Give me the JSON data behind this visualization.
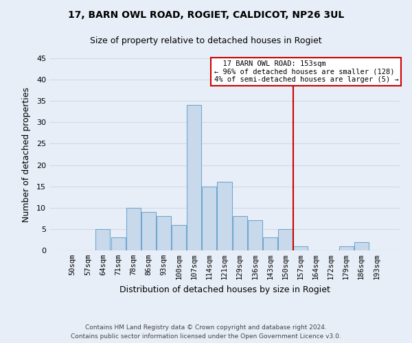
{
  "title": "17, BARN OWL ROAD, ROGIET, CALDICOT, NP26 3UL",
  "subtitle": "Size of property relative to detached houses in Rogiet",
  "xlabel": "Distribution of detached houses by size in Rogiet",
  "ylabel": "Number of detached properties",
  "footer_line1": "Contains HM Land Registry data © Crown copyright and database right 2024.",
  "footer_line2": "Contains public sector information licensed under the Open Government Licence v3.0.",
  "bin_labels": [
    "50sqm",
    "57sqm",
    "64sqm",
    "71sqm",
    "78sqm",
    "86sqm",
    "93sqm",
    "100sqm",
    "107sqm",
    "114sqm",
    "121sqm",
    "129sqm",
    "136sqm",
    "143sqm",
    "150sqm",
    "157sqm",
    "164sqm",
    "172sqm",
    "179sqm",
    "186sqm",
    "193sqm"
  ],
  "bar_values": [
    0,
    0,
    5,
    3,
    10,
    9,
    8,
    6,
    34,
    15,
    16,
    8,
    7,
    3,
    5,
    1,
    0,
    0,
    1,
    2,
    0
  ],
  "bar_color": "#c9d9ec",
  "bar_edge_color": "#6fa8d0",
  "ylim": [
    0,
    45
  ],
  "yticks": [
    0,
    5,
    10,
    15,
    20,
    25,
    30,
    35,
    40,
    45
  ],
  "vline_x": 14.5,
  "vline_color": "#cc0000",
  "annotation_title": "17 BARN OWL ROAD: 153sqm",
  "annotation_line2": "← 96% of detached houses are smaller (128)",
  "annotation_line3": "4% of semi-detached houses are larger (5) →",
  "annotation_box_color": "#ffffff",
  "annotation_box_edge": "#cc0000",
  "background_color": "#e8eef7",
  "grid_color": "#d0d8e8"
}
